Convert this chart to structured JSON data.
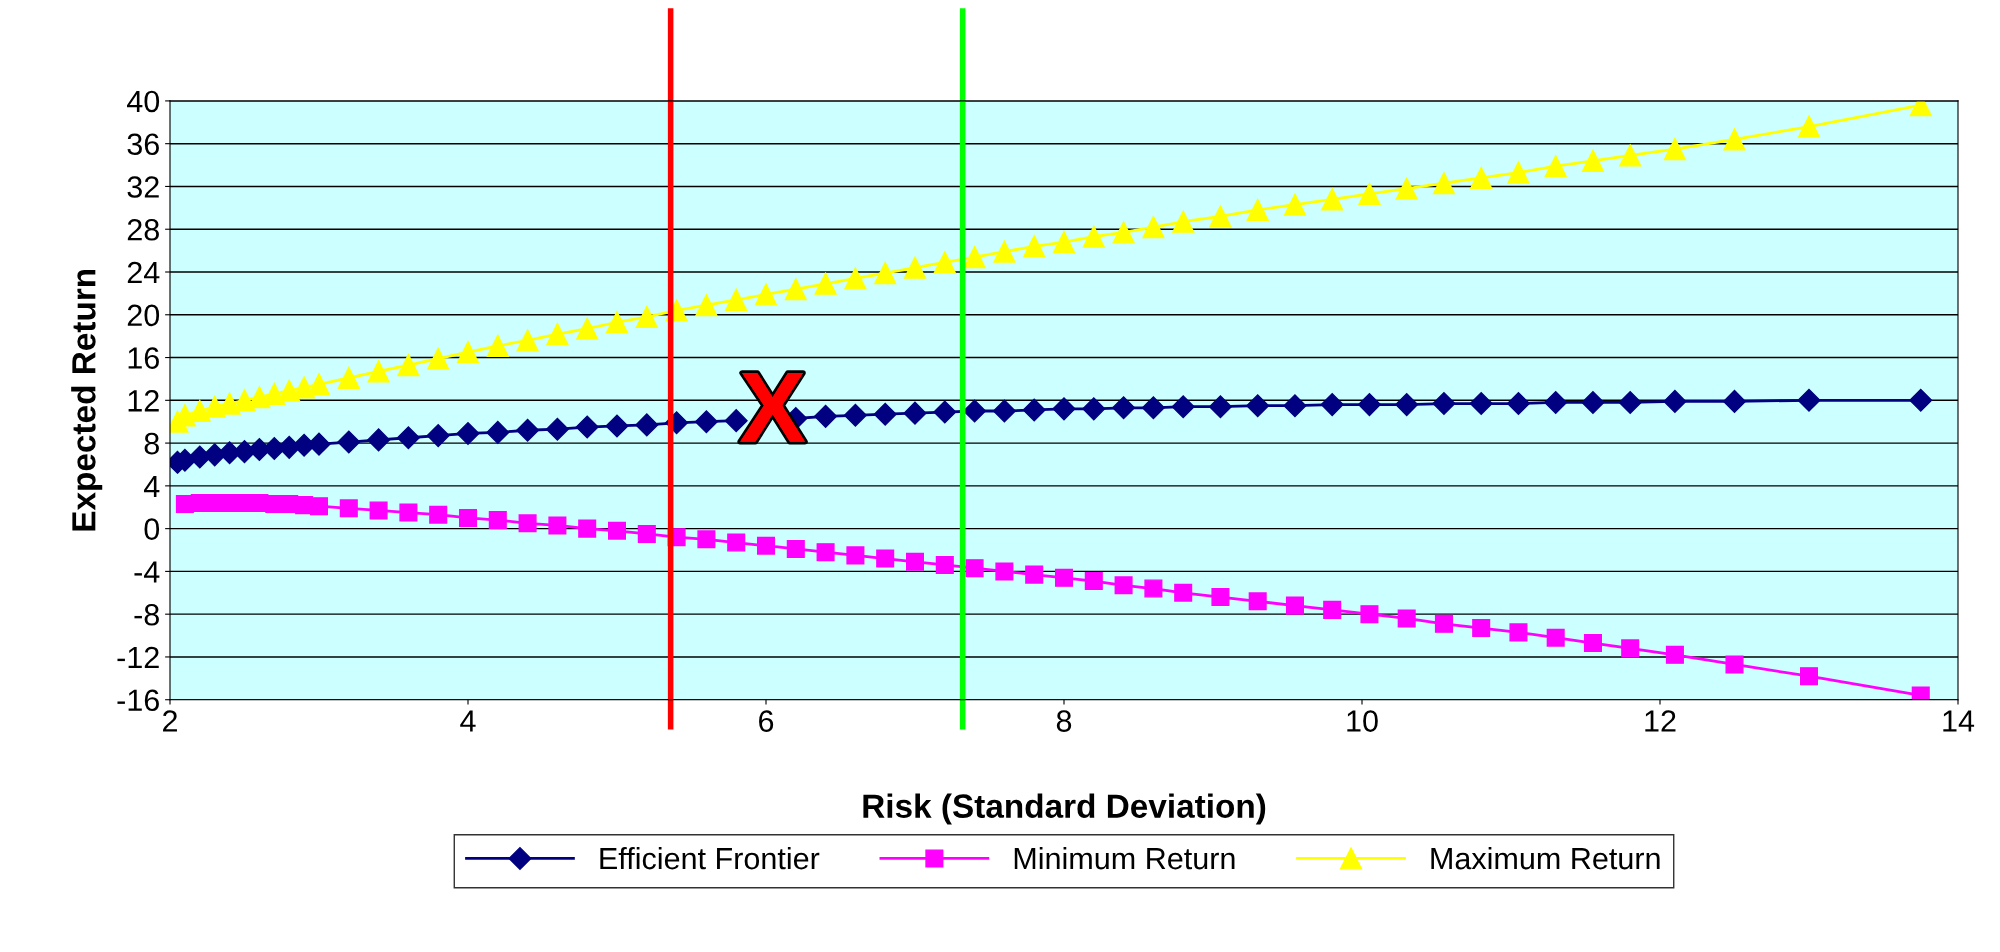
{
  "chart_data": {
    "type": "line",
    "xlabel": "Risk (Standard Deviation)",
    "ylabel": "Expected Return",
    "x": [
      2.05,
      2.1,
      2.2,
      2.3,
      2.4,
      2.5,
      2.6,
      2.7,
      2.8,
      2.9,
      3.0,
      3.2,
      3.4,
      3.6,
      3.8,
      4.0,
      4.2,
      4.4,
      4.6,
      4.8,
      5.0,
      5.2,
      5.4,
      5.6,
      5.8,
      6.0,
      6.2,
      6.4,
      6.6,
      6.8,
      7.0,
      7.2,
      7.4,
      7.6,
      7.8,
      8.0,
      8.2,
      8.4,
      8.6,
      8.8,
      9.05,
      9.3,
      9.55,
      9.8,
      10.05,
      10.3,
      10.55,
      10.8,
      11.05,
      11.3,
      11.55,
      11.8,
      12.1,
      12.5,
      13.0,
      13.75
    ],
    "series": [
      {
        "name": "Efficient Frontier",
        "color": "#000080",
        "marker": "diamond",
        "values": [
          6.2,
          6.4,
          6.7,
          6.9,
          7.1,
          7.2,
          7.4,
          7.5,
          7.6,
          7.8,
          7.9,
          8.1,
          8.3,
          8.5,
          8.7,
          8.9,
          9.0,
          9.2,
          9.3,
          9.5,
          9.6,
          9.7,
          9.9,
          10.0,
          10.1,
          null,
          10.3,
          10.5,
          10.6,
          10.7,
          10.8,
          10.9,
          11.0,
          11.0,
          11.1,
          11.2,
          11.2,
          11.3,
          11.3,
          11.4,
          11.4,
          11.5,
          11.5,
          11.6,
          11.6,
          11.6,
          11.7,
          11.7,
          11.7,
          11.8,
          11.8,
          11.8,
          11.9,
          11.9,
          12.0,
          12.0
        ]
      },
      {
        "name": "Minimum Return",
        "color": "#ff00ff",
        "marker": "square",
        "values": [
          null,
          2.3,
          2.4,
          2.4,
          2.4,
          2.4,
          2.4,
          2.3,
          2.3,
          2.2,
          2.1,
          1.9,
          1.7,
          1.5,
          1.3,
          1.0,
          0.8,
          0.5,
          0.3,
          0.0,
          -0.2,
          -0.5,
          -0.8,
          -1.0,
          -1.3,
          -1.6,
          -1.9,
          -2.2,
          -2.5,
          -2.8,
          -3.1,
          -3.4,
          -3.7,
          -4.0,
          -4.3,
          -4.6,
          -4.9,
          -5.3,
          -5.6,
          -6.0,
          -6.4,
          -6.8,
          -7.2,
          -7.6,
          -8.0,
          -8.4,
          -8.9,
          -9.3,
          -9.7,
          -10.2,
          -10.7,
          -11.2,
          -11.8,
          -12.7,
          -13.8,
          -15.6
        ]
      },
      {
        "name": "Maximum Return",
        "color": "#ffff00",
        "marker": "triangle",
        "values": [
          10.0,
          10.6,
          11.0,
          11.4,
          11.7,
          12.0,
          12.3,
          12.6,
          12.9,
          13.2,
          13.5,
          14.1,
          14.7,
          15.3,
          15.9,
          16.5,
          17.1,
          17.6,
          18.2,
          18.7,
          19.3,
          19.8,
          20.4,
          20.9,
          21.4,
          21.9,
          22.4,
          22.9,
          23.4,
          23.9,
          24.4,
          24.9,
          25.4,
          25.9,
          26.4,
          26.8,
          27.3,
          27.7,
          28.2,
          28.7,
          29.2,
          29.8,
          30.3,
          30.8,
          31.3,
          31.8,
          32.3,
          32.8,
          33.3,
          33.9,
          34.4,
          34.9,
          35.5,
          36.4,
          37.6,
          39.6
        ]
      }
    ],
    "xlim": [
      2,
      14
    ],
    "xticks": [
      2,
      4,
      6,
      8,
      10,
      12,
      14
    ],
    "ylim": [
      -16,
      40
    ],
    "yticks": [
      -16,
      -12,
      -8,
      -4,
      0,
      4,
      8,
      12,
      16,
      20,
      24,
      28,
      32,
      36,
      40
    ],
    "grid": "y",
    "legend": "bottom",
    "line_style": "solid",
    "ref_lines": [
      {
        "axis": "x",
        "value": 5.36,
        "color": "#ff0000"
      },
      {
        "axis": "x",
        "value": 7.32,
        "color": "#00ff00"
      }
    ],
    "annotations": [
      "X"
    ]
  }
}
